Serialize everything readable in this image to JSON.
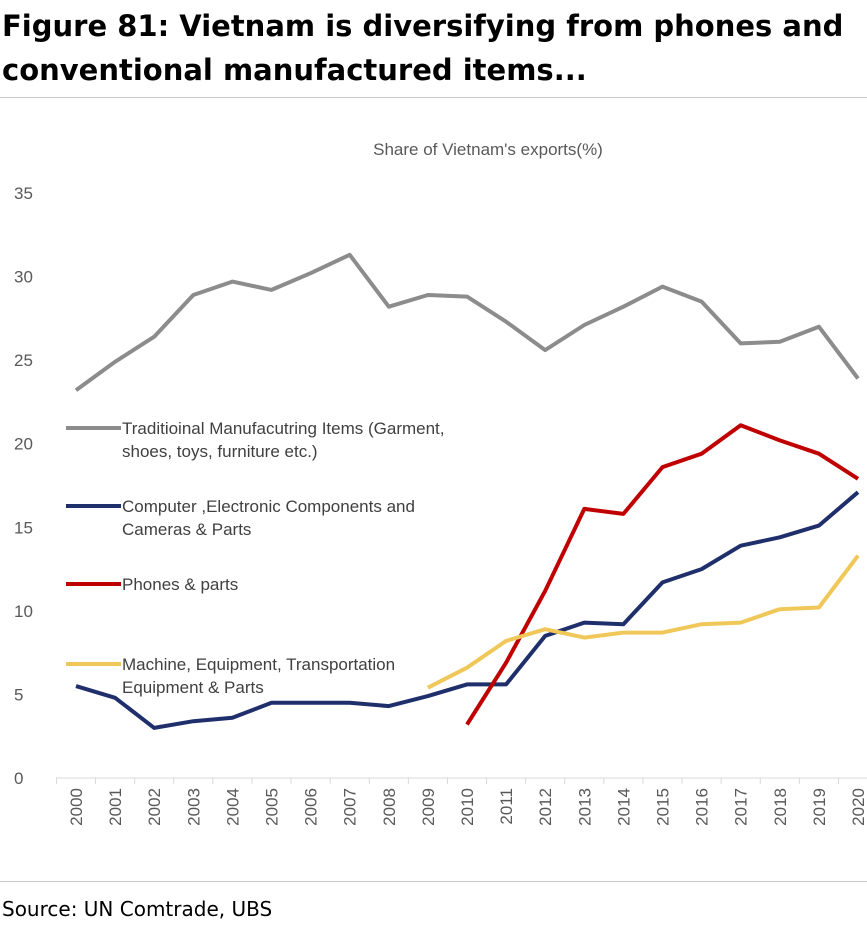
{
  "figure": {
    "title": "Figure 81: Vietnam is diversifying from phones and conventional manufactured items...",
    "source": "Source: UN Comtrade, UBS"
  },
  "chart_data": {
    "type": "line",
    "title": "Share of Vietnam's exports(%)",
    "xlabel": "",
    "ylabel": "",
    "ylim": [
      0,
      35
    ],
    "yticks": [
      0,
      5,
      10,
      15,
      20,
      25,
      30,
      35
    ],
    "grid": false,
    "legend_position": "left, inside plot",
    "x": [
      "2000",
      "2001",
      "2002",
      "2003",
      "2004",
      "2005",
      "2006",
      "2007",
      "2008",
      "2009",
      "2010",
      "2011",
      "2012",
      "2013",
      "2014",
      "2015",
      "2016",
      "2017",
      "2018",
      "2019",
      "2020"
    ],
    "series": [
      {
        "name": "Traditioinal Manufacutring Items (Garment, shoes, toys, furniture etc.)",
        "legend_lines": [
          "Traditioinal Manufacutring Items (Garment,",
          "shoes, toys, furniture etc.)"
        ],
        "color": "#8c8c8c",
        "values": [
          23.2,
          24.9,
          26.4,
          28.9,
          29.7,
          29.2,
          30.2,
          31.3,
          28.2,
          28.9,
          28.8,
          27.3,
          25.6,
          27.1,
          28.2,
          29.4,
          28.5,
          26.0,
          26.1,
          27.0,
          23.9
        ]
      },
      {
        "name": "Computer ,Electronic Components and Cameras & Parts",
        "legend_lines": [
          "Computer ,Electronic Components and",
          "Cameras & Parts"
        ],
        "color": "#1f2f6b",
        "values": [
          5.5,
          4.8,
          3.0,
          3.4,
          3.6,
          4.5,
          4.5,
          4.5,
          4.3,
          4.9,
          5.6,
          5.6,
          8.5,
          9.3,
          9.2,
          11.7,
          12.5,
          13.9,
          14.4,
          15.1,
          17.1
        ]
      },
      {
        "name": "Phones & parts",
        "legend_lines": [
          "Phones & parts"
        ],
        "color": "#c00000",
        "values": [
          null,
          null,
          null,
          null,
          null,
          null,
          null,
          null,
          null,
          null,
          3.2,
          6.9,
          11.2,
          16.1,
          15.8,
          18.6,
          19.4,
          21.1,
          20.2,
          19.4,
          17.9
        ]
      },
      {
        "name": "Machine, Equipment, Transportation Equipment & Parts",
        "legend_lines": [
          "Machine, Equipment, Transportation",
          "Equipment & Parts"
        ],
        "color": "#f0c85a",
        "values": [
          null,
          null,
          null,
          null,
          null,
          null,
          null,
          null,
          null,
          5.4,
          6.6,
          8.2,
          8.9,
          8.4,
          8.7,
          8.7,
          9.2,
          9.3,
          10.1,
          10.2,
          13.3
        ]
      }
    ]
  }
}
